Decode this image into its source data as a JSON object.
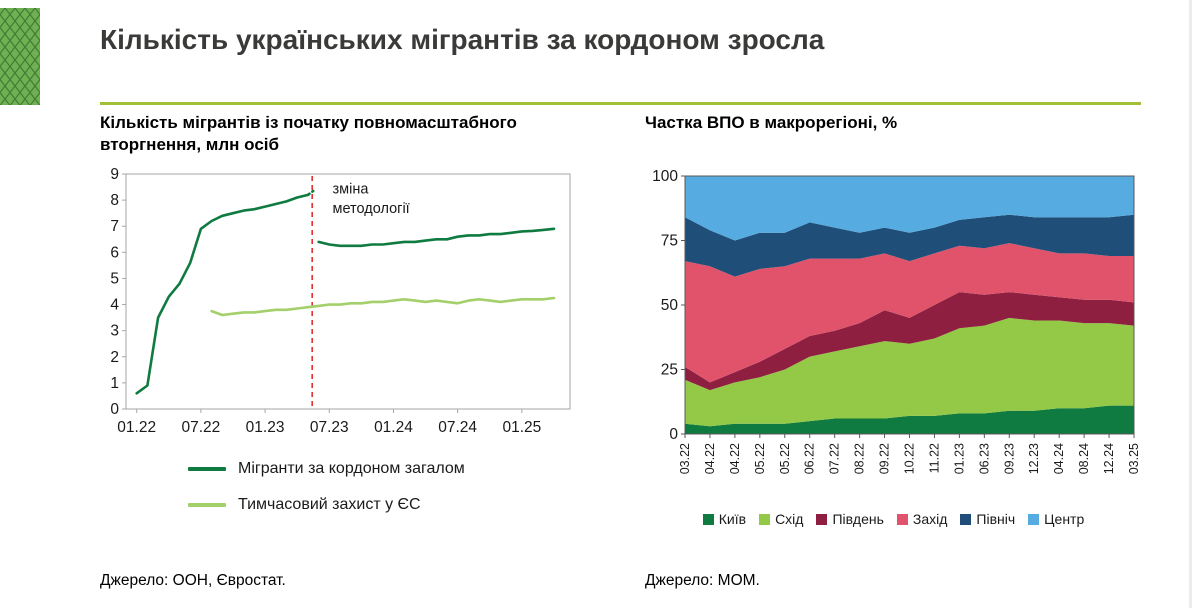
{
  "header": {
    "title": "Кількість українських мігрантів за кордоном зросла"
  },
  "colors": {
    "accent_rule": "#a2c037",
    "logo_base": "#6fb052",
    "logo_lattice": "#3f7d33",
    "migrants_total": "#0f7b40",
    "eu_protection": "#a3d06a",
    "methodology_line": "#e01010"
  },
  "left_panel": {
    "title": "Кількість мігрантів із початку повномасштабного вторгнення, млн осіб",
    "annotation": "зміна методології",
    "source": "Джерело: ООН, Євростат."
  },
  "right_panel": {
    "title": "Частка ВПО в макрорегіоні, %",
    "source": "Джерело: МОМ."
  },
  "chart_data": [
    {
      "type": "line",
      "title": "Кількість мігрантів із початку повномасштабного вторгнення, млн осіб",
      "ylabel": "млн осіб",
      "ylim": [
        0,
        9
      ],
      "yticks": [
        0,
        1,
        2,
        3,
        4,
        5,
        6,
        7,
        8,
        9
      ],
      "xlim": [
        -1,
        40.5
      ],
      "xticks": [
        {
          "x": 0,
          "label": "01.22"
        },
        {
          "x": 6,
          "label": "07.22"
        },
        {
          "x": 12,
          "label": "01.23"
        },
        {
          "x": 18,
          "label": "07.23"
        },
        {
          "x": 24,
          "label": "01.24"
        },
        {
          "x": 30,
          "label": "07.24"
        },
        {
          "x": 36,
          "label": "01.25"
        }
      ],
      "grid": false,
      "legend_position": "bottom",
      "methodology_break": {
        "x": 16.4,
        "label_lines": [
          "зміна",
          "методології"
        ],
        "label_x": 18.3,
        "label_y": [
          8.25,
          7.5
        ]
      },
      "series": [
        {
          "name": "Мігранти за кордоном загалом",
          "color": "#0f7b40",
          "width": 2.6,
          "segments": [
            {
              "style": "solid",
              "points": [
                [
                  0,
                  0.6
                ],
                [
                  1,
                  0.9
                ],
                [
                  2,
                  3.5
                ],
                [
                  3,
                  4.3
                ],
                [
                  4,
                  4.8
                ],
                [
                  5,
                  5.6
                ],
                [
                  6,
                  6.9
                ],
                [
                  7,
                  7.2
                ],
                [
                  8,
                  7.4
                ],
                [
                  9,
                  7.5
                ],
                [
                  10,
                  7.6
                ],
                [
                  11,
                  7.65
                ],
                [
                  12,
                  7.75
                ],
                [
                  13,
                  7.85
                ],
                [
                  14,
                  7.95
                ],
                [
                  15,
                  8.1
                ],
                [
                  16,
                  8.2
                ]
              ]
            },
            {
              "style": "dotted",
              "points": [
                [
                  16,
                  8.2
                ],
                [
                  16.5,
                  8.35
                ]
              ]
            },
            {
              "style": "solid",
              "points": [
                [
                  17,
                  6.4
                ],
                [
                  18,
                  6.3
                ],
                [
                  19,
                  6.25
                ],
                [
                  20,
                  6.25
                ],
                [
                  21,
                  6.25
                ],
                [
                  22,
                  6.3
                ],
                [
                  23,
                  6.3
                ],
                [
                  24,
                  6.35
                ],
                [
                  25,
                  6.4
                ],
                [
                  26,
                  6.4
                ],
                [
                  27,
                  6.45
                ],
                [
                  28,
                  6.5
                ],
                [
                  29,
                  6.5
                ],
                [
                  30,
                  6.6
                ],
                [
                  31,
                  6.65
                ],
                [
                  32,
                  6.65
                ],
                [
                  33,
                  6.7
                ],
                [
                  34,
                  6.7
                ],
                [
                  35,
                  6.75
                ],
                [
                  36,
                  6.8
                ],
                [
                  37,
                  6.82
                ],
                [
                  38,
                  6.86
                ],
                [
                  39,
                  6.9
                ]
              ]
            }
          ]
        },
        {
          "name": "Тимчасовий захист у ЄС",
          "color": "#a3d06a",
          "width": 2.6,
          "segments": [
            {
              "style": "solid",
              "points": [
                [
                  7,
                  3.75
                ],
                [
                  8,
                  3.6
                ],
                [
                  9,
                  3.65
                ],
                [
                  10,
                  3.7
                ],
                [
                  11,
                  3.7
                ],
                [
                  12,
                  3.75
                ],
                [
                  13,
                  3.8
                ],
                [
                  14,
                  3.8
                ],
                [
                  15,
                  3.85
                ],
                [
                  16,
                  3.9
                ],
                [
                  17,
                  3.95
                ],
                [
                  18,
                  4.0
                ],
                [
                  19,
                  4.0
                ],
                [
                  20,
                  4.05
                ],
                [
                  21,
                  4.05
                ],
                [
                  22,
                  4.1
                ],
                [
                  23,
                  4.1
                ],
                [
                  24,
                  4.15
                ],
                [
                  25,
                  4.2
                ],
                [
                  26,
                  4.15
                ],
                [
                  27,
                  4.1
                ],
                [
                  28,
                  4.15
                ],
                [
                  29,
                  4.1
                ],
                [
                  30,
                  4.05
                ],
                [
                  31,
                  4.15
                ],
                [
                  32,
                  4.2
                ],
                [
                  33,
                  4.15
                ],
                [
                  34,
                  4.1
                ],
                [
                  35,
                  4.15
                ],
                [
                  36,
                  4.2
                ],
                [
                  37,
                  4.2
                ],
                [
                  38,
                  4.2
                ],
                [
                  39,
                  4.25
                ]
              ]
            }
          ]
        }
      ]
    },
    {
      "type": "area",
      "stacked_percent": true,
      "title": "Частка ВПО в макрорегіоні, %",
      "ylim": [
        0,
        100
      ],
      "yticks": [
        0,
        25,
        50,
        75,
        100
      ],
      "grid": false,
      "legend_position": "bottom",
      "categories": [
        "03.22",
        "04.22",
        "04.22",
        "05.22",
        "05.22",
        "06.22",
        "07.22",
        "08.22",
        "09.22",
        "10.22",
        "11.22",
        "01.23",
        "06.23",
        "09.23",
        "12.23",
        "04.24",
        "08.24",
        "12.24",
        "03.25"
      ],
      "series": [
        {
          "name": "Київ",
          "color": "#0f7b40",
          "values": [
            4,
            3,
            4,
            4,
            4,
            5,
            6,
            6,
            6,
            7,
            7,
            8,
            8,
            9,
            9,
            10,
            10,
            11,
            11
          ]
        },
        {
          "name": "Схід",
          "color": "#94c847",
          "values": [
            17,
            14,
            16,
            18,
            21,
            25,
            26,
            28,
            30,
            28,
            30,
            33,
            34,
            36,
            35,
            34,
            33,
            32,
            31
          ]
        },
        {
          "name": "Південь",
          "color": "#8f1f40",
          "values": [
            5,
            3,
            4,
            6,
            8,
            8,
            8,
            9,
            12,
            10,
            13,
            14,
            12,
            10,
            10,
            9,
            9,
            9,
            9
          ]
        },
        {
          "name": "Захід",
          "color": "#e0536b",
          "values": [
            41,
            45,
            37,
            36,
            32,
            30,
            28,
            25,
            22,
            22,
            20,
            18,
            18,
            19,
            18,
            17,
            18,
            17,
            18
          ]
        },
        {
          "name": "Північ",
          "color": "#1f4e79",
          "values": [
            17,
            14,
            14,
            14,
            13,
            14,
            12,
            10,
            10,
            11,
            10,
            10,
            12,
            11,
            12,
            14,
            14,
            15,
            16
          ]
        },
        {
          "name": "Центр",
          "color": "#56ace0",
          "values": [
            16,
            21,
            25,
            22,
            22,
            18,
            20,
            22,
            20,
            22,
            20,
            17,
            16,
            15,
            16,
            16,
            16,
            16,
            15
          ]
        }
      ]
    }
  ]
}
